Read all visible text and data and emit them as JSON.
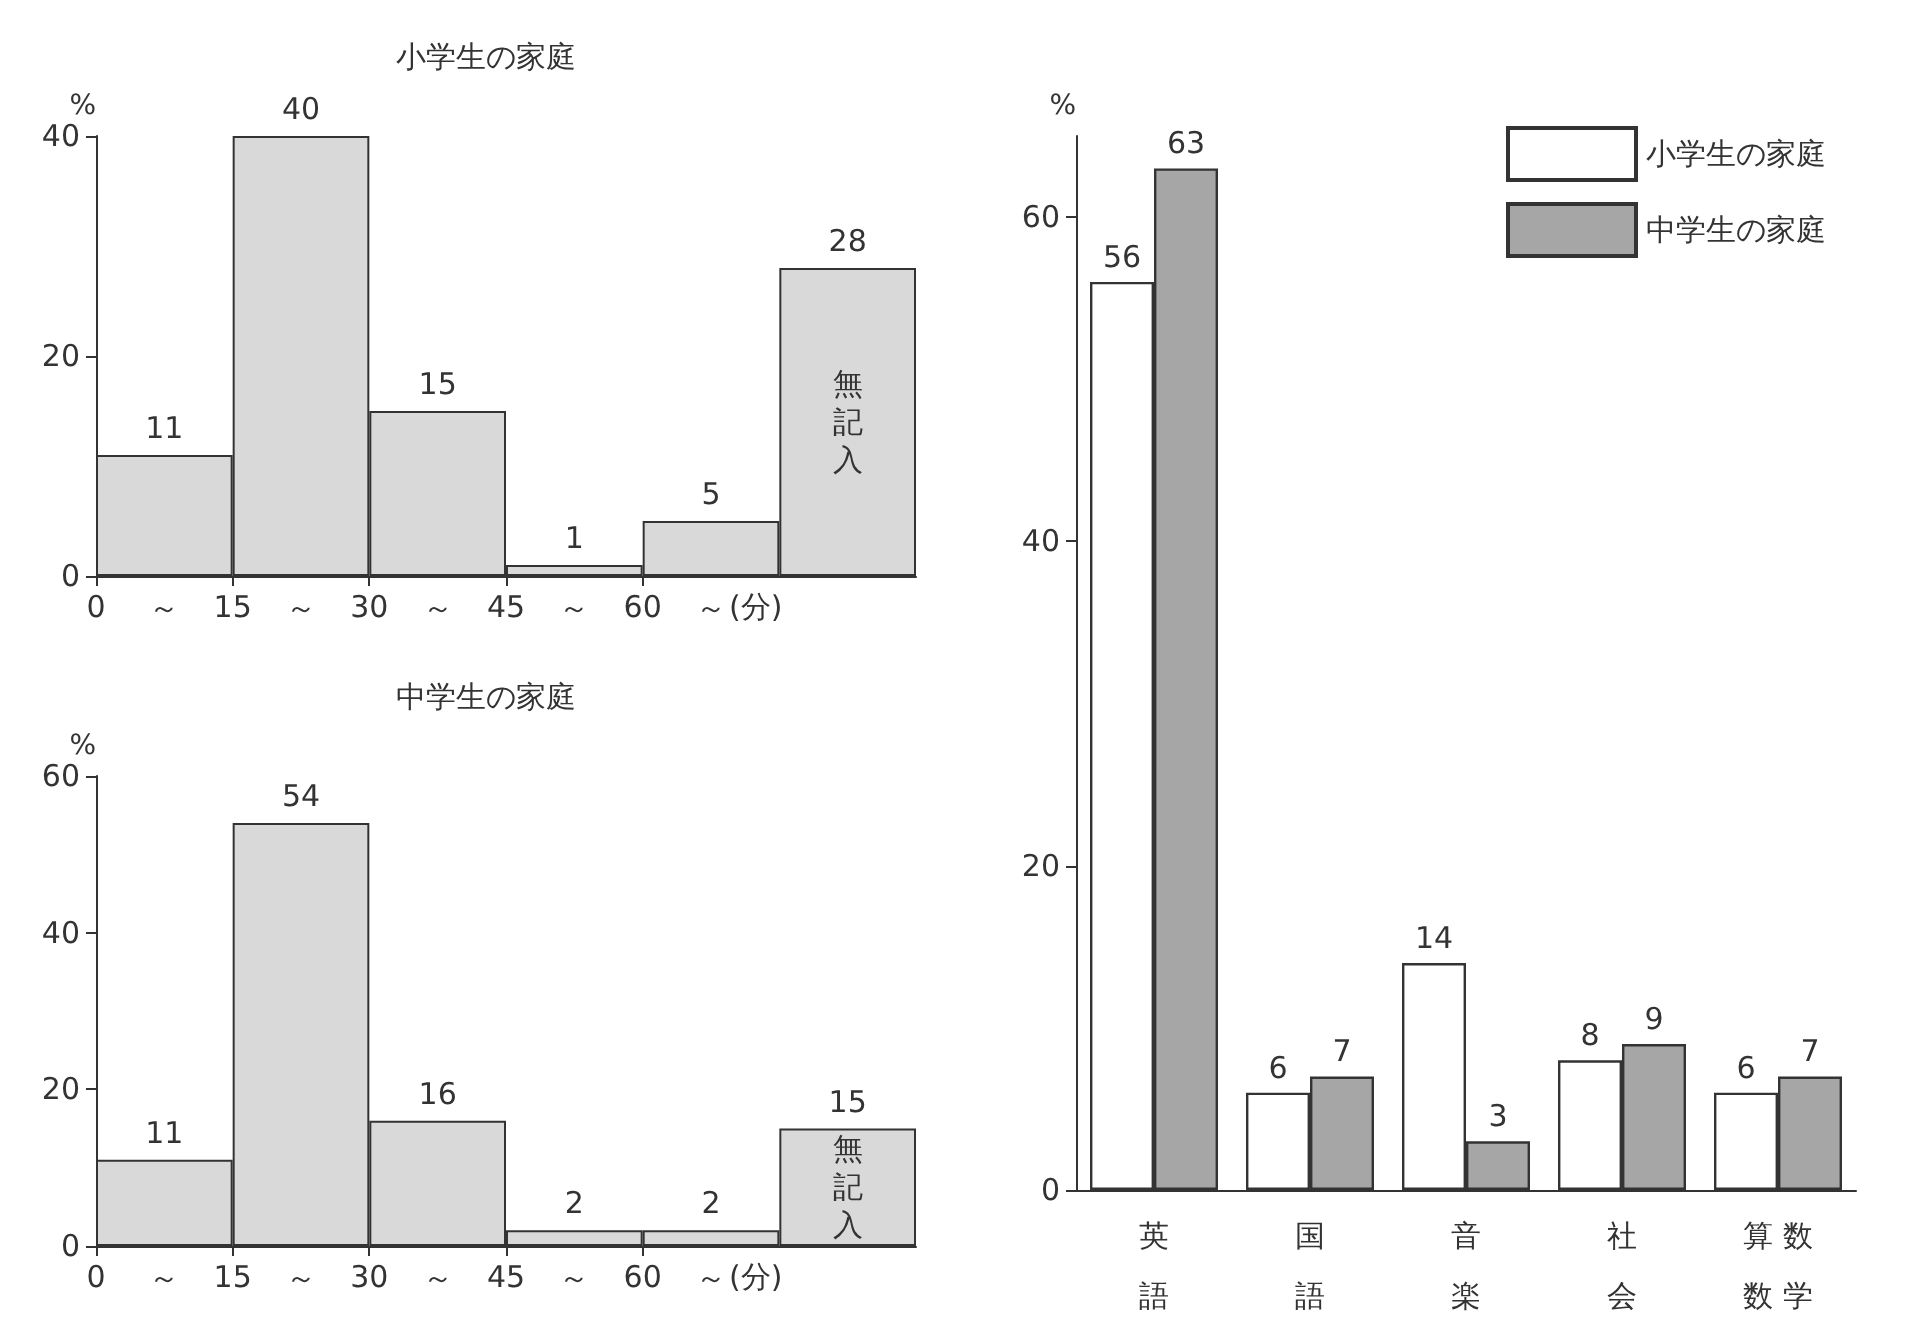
{
  "chart_data": [
    {
      "type": "histogram",
      "title": "小学生の家庭",
      "ylabel": "%",
      "bins": [
        0,
        15,
        30,
        45,
        60,
        75,
        90
      ],
      "values": [
        11,
        40,
        15,
        1,
        5,
        28
      ],
      "color": "#d9d9d9",
      "data_labels": true,
      "xlabel": "(分)",
      "xlim": [
        0,
        90
      ],
      "xticks": [
        0,
        15,
        30,
        45,
        60
      ],
      "ylim": [
        0,
        40
      ],
      "yticks": [
        0,
        20,
        40
      ],
      "grid": false,
      "annotations": [
        "無記入",
        "～",
        "～",
        "～",
        "～",
        "～"
      ]
    },
    {
      "type": "histogram",
      "title": "中学生の家庭",
      "ylabel": "%",
      "bins": [
        0,
        15,
        30,
        45,
        60,
        75,
        90
      ],
      "values": [
        11,
        54,
        16,
        2,
        2,
        15
      ],
      "color": "#d9d9d9",
      "data_labels": true,
      "xlabel": "(分)",
      "xlim": [
        0,
        90
      ],
      "xticks": [
        0,
        15,
        30,
        45,
        60
      ],
      "ylim": [
        0,
        60
      ],
      "yticks": [
        0,
        20,
        40,
        60
      ],
      "grid": false,
      "annotations": [
        "無記入",
        "～",
        "～",
        "～",
        "～",
        "～"
      ]
    },
    {
      "type": "bar",
      "ylabel": "%",
      "categories": [
        "英語",
        "国語",
        "音楽",
        "社会",
        "算数数学"
      ],
      "series": [
        {
          "name": "小学生の家庭",
          "color": "#ffffff",
          "values": [
            56,
            6,
            14,
            8,
            6
          ]
        },
        {
          "name": "中学生の家庭",
          "color": "#a6a6a6",
          "values": [
            63,
            7,
            3,
            9,
            7
          ]
        }
      ],
      "ylim": [
        0,
        65
      ],
      "yticks": [
        0,
        20,
        40,
        60
      ],
      "data_labels": true,
      "legend": "top right",
      "grid": false
    }
  ]
}
